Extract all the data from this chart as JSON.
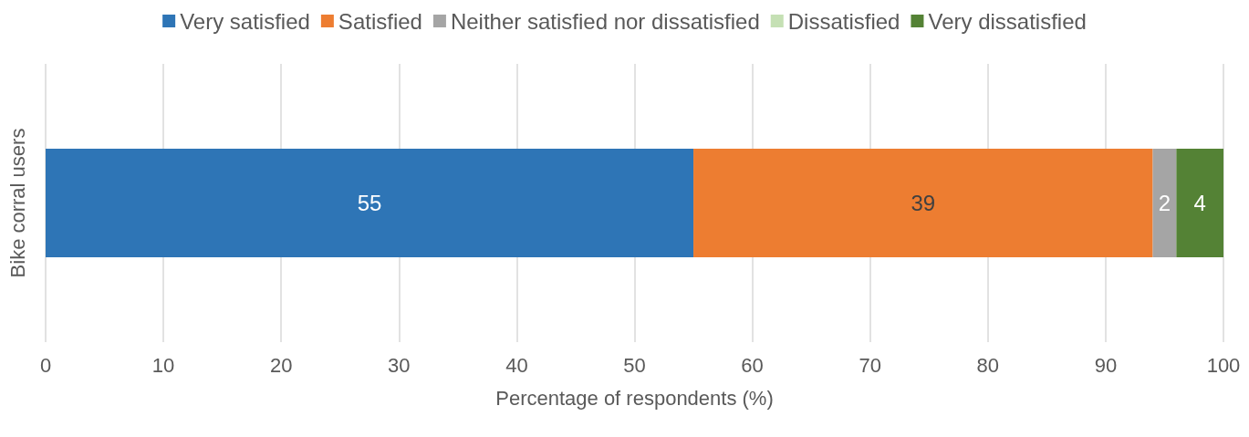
{
  "chart_data": {
    "type": "bar",
    "orientation": "horizontal",
    "stacked": true,
    "xlabel": "Percentage of respondents (%)",
    "ylabel": "Bike corral users",
    "categories": [
      null
    ],
    "series": [
      {
        "name": "Very satisfied",
        "color": "#2e75b6",
        "values": [
          55
        ],
        "value_labels": [
          "55"
        ]
      },
      {
        "name": "Satisfied",
        "color": "#ed7d31",
        "values": [
          39
        ],
        "value_labels": [
          "39"
        ]
      },
      {
        "name": "Neither satisfied nor dissatisfied",
        "color": "#a5a5a5",
        "values": [
          2
        ],
        "value_labels": [
          "2"
        ]
      },
      {
        "name": "Dissatisfied",
        "color": "#c5e0b4",
        "values": [
          0
        ],
        "value_labels": [
          null
        ]
      },
      {
        "name": "Very dissatisfied",
        "color": "#548235",
        "values": [
          4
        ],
        "value_labels": [
          "4"
        ]
      }
    ],
    "xlim": [
      0,
      100
    ],
    "xticks": [
      0,
      10,
      20,
      30,
      40,
      50,
      60,
      70,
      80,
      90,
      100
    ],
    "grid": "x",
    "legend": "top"
  }
}
